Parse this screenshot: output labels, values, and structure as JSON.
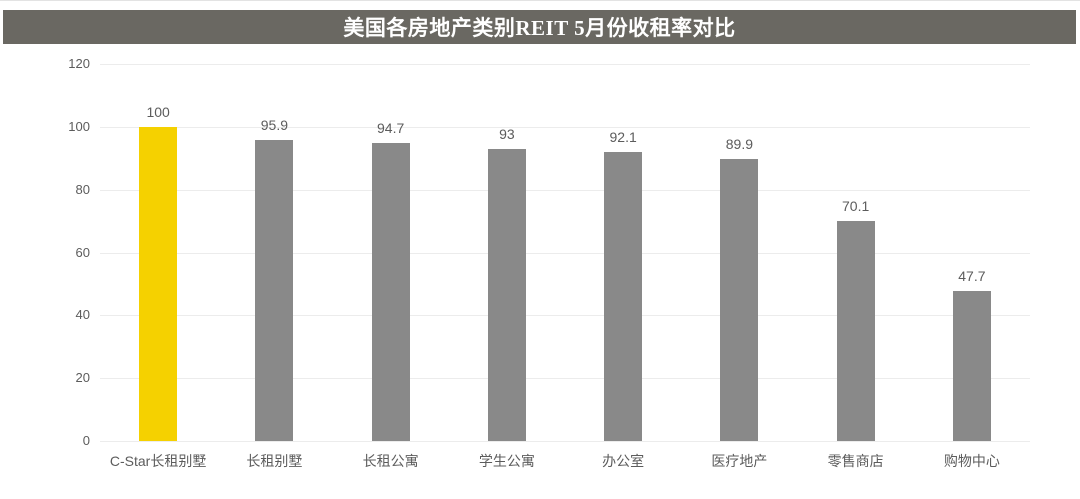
{
  "header": {
    "title": "美国各房地产类别REIT 5月份收租率对比"
  },
  "chart_data": {
    "type": "bar",
    "title": "美国各房地产类别REIT 5月份收租率对比",
    "categories": [
      "C-Star长租别墅",
      "长租别墅",
      "长租公寓",
      "学生公寓",
      "办公室",
      "医疗地产",
      "零售商店",
      "购物中心"
    ],
    "values": [
      100,
      95.9,
      94.7,
      93,
      92.1,
      89.9,
      70.1,
      47.7
    ],
    "value_labels": [
      "100",
      "95.9",
      "94.7",
      "93",
      "92.1",
      "89.9",
      "70.1",
      "47.7"
    ],
    "xlabel": "",
    "ylabel": "",
    "ylim": [
      0,
      120
    ],
    "yticks": [
      0,
      20,
      40,
      60,
      80,
      100,
      120
    ],
    "grid": "horizontal",
    "legend": "none",
    "highlight_index": 0,
    "highlight_color": "#F5D100",
    "bar_color": "#898989",
    "title_band_color": "#6A6862",
    "gridline_color": "#ECECEC",
    "axis_text_color": "#5C5C5C",
    "value_label_color": "#5C5C5C",
    "category_label_color": "#5C5C5C"
  }
}
